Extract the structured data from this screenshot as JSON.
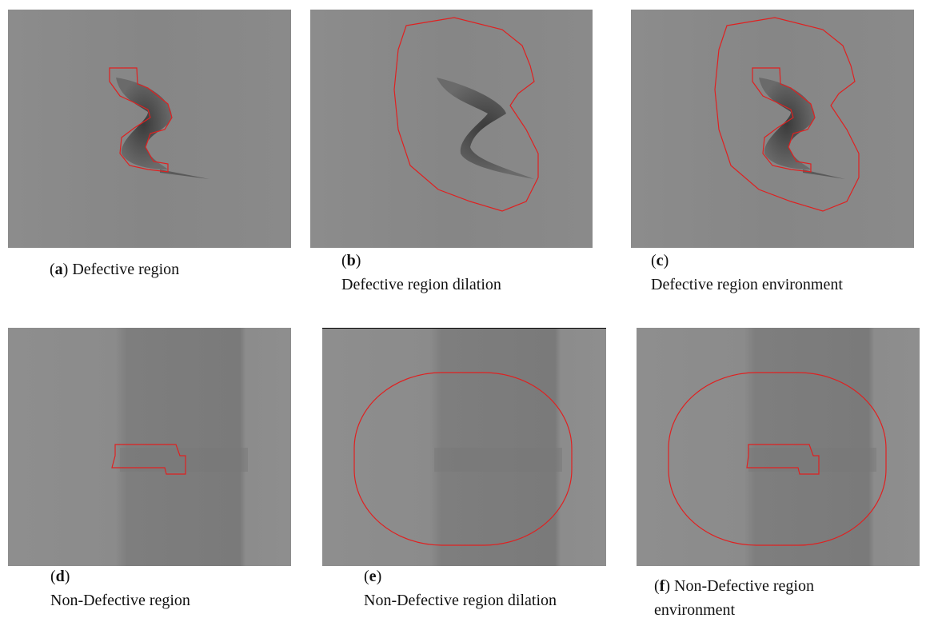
{
  "panels": [
    {
      "label": [
        "(",
        "a",
        ")"
      ],
      "caption": "Defective region"
    },
    {
      "label": [
        "(",
        "b",
        ")"
      ],
      "caption": "Defective region dilation"
    },
    {
      "label": [
        "(",
        "c",
        ")"
      ],
      "caption": "Defective region environment"
    },
    {
      "label": [
        "(",
        "d",
        ")"
      ],
      "caption": "Non-Defective region"
    },
    {
      "label": [
        "(",
        "e",
        ")"
      ],
      "caption": "Non-Defective region dilation"
    },
    {
      "label": [
        "(",
        "f",
        ")"
      ],
      "caption": "Non-Defective region environment"
    }
  ]
}
